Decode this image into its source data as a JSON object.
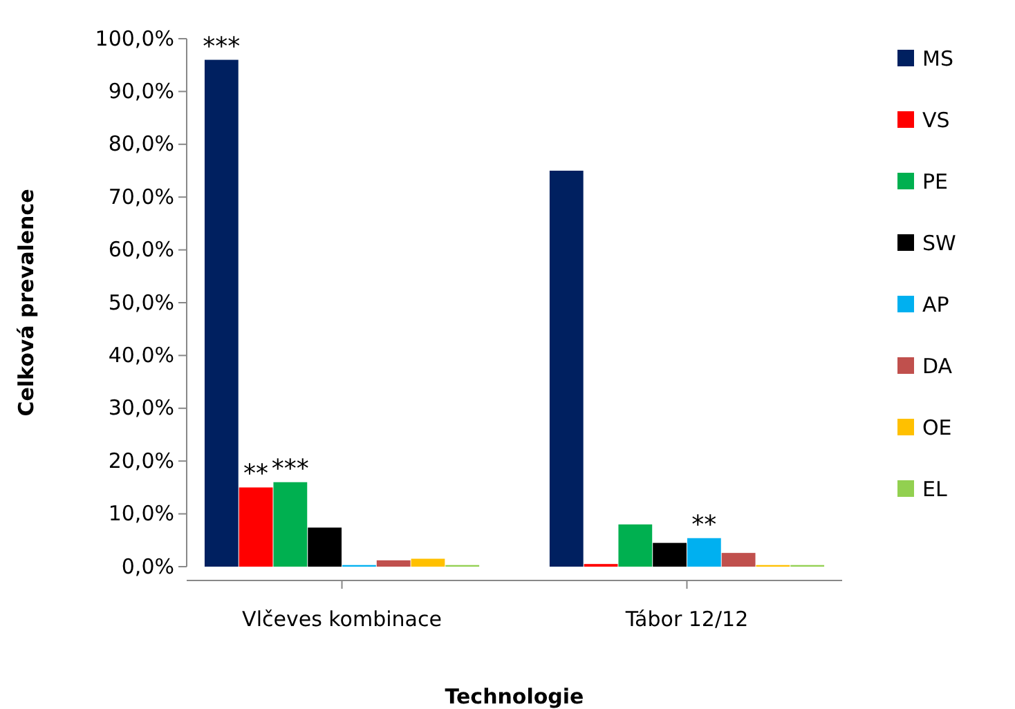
{
  "chart_data": {
    "type": "bar",
    "xlabel": "Technologie",
    "ylabel": "Celková prevalence",
    "categories": [
      "Vlčeves kombinace",
      "Tábor 12/12"
    ],
    "series": [
      {
        "name": "MS",
        "color": "#002060",
        "values": [
          96,
          75
        ]
      },
      {
        "name": "VS",
        "color": "#ff0000",
        "values": [
          15,
          0.5
        ]
      },
      {
        "name": "PE",
        "color": "#00b050",
        "values": [
          16,
          8
        ]
      },
      {
        "name": "SW",
        "color": "#000000",
        "values": [
          7.4,
          4.5
        ]
      },
      {
        "name": "AP",
        "color": "#00b0f0",
        "values": [
          0.3,
          5.4
        ]
      },
      {
        "name": "DA",
        "color": "#c0504d",
        "values": [
          1.2,
          2.6
        ]
      },
      {
        "name": "OE",
        "color": "#ffc000",
        "values": [
          1.5,
          0.3
        ]
      },
      {
        "name": "EL",
        "color": "#92d050",
        "values": [
          0.3,
          0.3
        ]
      }
    ],
    "ylim": [
      0,
      100
    ],
    "yticks": [
      {
        "value": 0,
        "label": "0,0%"
      },
      {
        "value": 10,
        "label": "10,0%"
      },
      {
        "value": 20,
        "label": "20,0%"
      },
      {
        "value": 30,
        "label": "30,0%"
      },
      {
        "value": 40,
        "label": "40,0%"
      },
      {
        "value": 50,
        "label": "50,0%"
      },
      {
        "value": 60,
        "label": "60,0%"
      },
      {
        "value": 70,
        "label": "70,0%"
      },
      {
        "value": 80,
        "label": "80,0%"
      },
      {
        "value": 90,
        "label": "90,0%"
      },
      {
        "value": 100,
        "label": "100,0%"
      }
    ],
    "annotations": [
      "***",
      "**",
      "***",
      "**"
    ],
    "grid": false,
    "legend": "right"
  }
}
